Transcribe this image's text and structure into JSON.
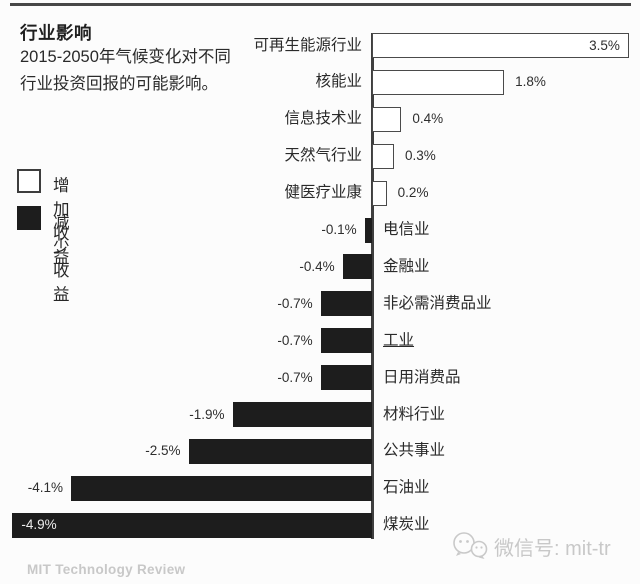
{
  "header": {
    "title": "行业影响",
    "subtitle": "2015-2050年气候变化对不同行业投资回报的可能影响。"
  },
  "legend": {
    "increase": {
      "label": "增加收益",
      "color": "#ffffff"
    },
    "decrease": {
      "label": "减少收益",
      "color": "#1d1d1d"
    }
  },
  "chart_data": {
    "type": "bar",
    "orientation": "horizontal",
    "unit": "%",
    "baseline": 0,
    "value_range": [
      -4.9,
      3.5
    ],
    "increase_color": "#ffffff",
    "decrease_color": "#1d1d1d",
    "series": [
      {
        "label": "可再生能源行业",
        "value": 3.5,
        "display": "3.5%",
        "value_inside": true
      },
      {
        "label": "核能业",
        "value": 1.8,
        "display": "1.8%"
      },
      {
        "label": "信息技术业",
        "value": 0.4,
        "display": "0.4%"
      },
      {
        "label": "天然气行业",
        "value": 0.3,
        "display": "0.3%"
      },
      {
        "label": "健医疗业康",
        "value": 0.2,
        "display": "0.2%"
      },
      {
        "label": "电信业",
        "value": -0.1,
        "display": "-0.1%"
      },
      {
        "label": "金融业",
        "value": -0.4,
        "display": "-0.4%"
      },
      {
        "label": "非必需消费品业",
        "value": -0.7,
        "display": "-0.7%"
      },
      {
        "label": "工业",
        "value": -0.7,
        "display": "-0.7%",
        "underline": true
      },
      {
        "label": "日用消费品",
        "value": -0.7,
        "display": "-0.7%"
      },
      {
        "label": "材料行业",
        "value": -1.9,
        "display": "-1.9%"
      },
      {
        "label": "公共事业",
        "value": -2.5,
        "display": "-2.5%"
      },
      {
        "label": "石油业",
        "value": -4.1,
        "display": "-4.1%"
      },
      {
        "label": "煤炭业",
        "value": -4.9,
        "display": "-4.9%",
        "value_inside": true
      }
    ]
  },
  "footer": {
    "brand": "MIT Technology Review",
    "wechat_label": "微信号: mit-tr"
  }
}
